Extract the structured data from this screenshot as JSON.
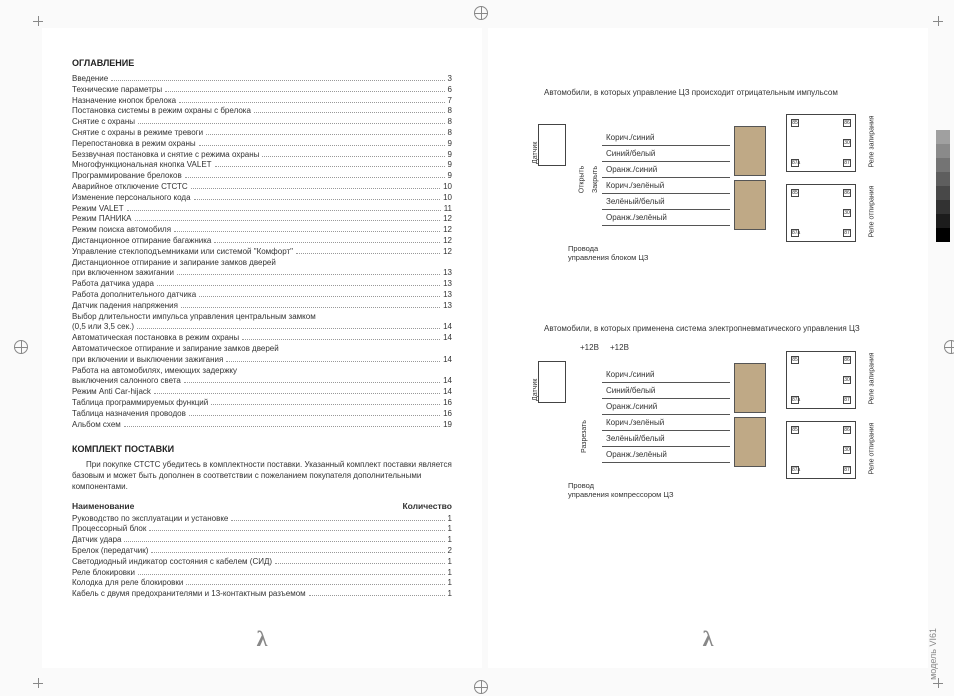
{
  "left_page": {
    "heading_toc": "ОГЛАВЛЕНИЕ",
    "toc": [
      {
        "label": "Введение",
        "page": "3"
      },
      {
        "label": "Технические параметры",
        "page": "6"
      },
      {
        "label": "Назначение кнопок брелока",
        "page": "7"
      },
      {
        "label": "Постановка системы в режим охраны с брелока",
        "page": "8"
      },
      {
        "label": "Снятие с охраны",
        "page": "8"
      },
      {
        "label": "Снятие с охраны в режиме тревоги",
        "page": "8"
      },
      {
        "label": "Перепостановка в режим охраны",
        "page": "9"
      },
      {
        "label": "Беззвучная постановка и снятие с режима охраны",
        "page": "9"
      },
      {
        "label": "Многофункциональная кнопка VALET",
        "page": "9"
      },
      {
        "label": "Программирование брелоков",
        "page": "9"
      },
      {
        "label": "Аварийное отключение СТСТС",
        "page": "10"
      },
      {
        "label": "Изменение персонального кода",
        "page": "10"
      },
      {
        "label": "Режим VALET",
        "page": "11"
      },
      {
        "label": "Режим ПАНИКА",
        "page": "12"
      },
      {
        "label": "Режим поиска автомобиля",
        "page": "12"
      },
      {
        "label": "Дистанционное отпирание багажника",
        "page": "12"
      },
      {
        "label": "Управление стеклоподъемниками или системой \"Комфорт\"",
        "page": "12"
      },
      {
        "label": "Дистанционное отпирание и запирание замков дверей",
        "page": ""
      },
      {
        "label": "при включенном зажигании",
        "page": "13"
      },
      {
        "label": "Работа датчика удара",
        "page": "13"
      },
      {
        "label": "Работа дополнительного датчика",
        "page": "13"
      },
      {
        "label": "Датчик падения напряжения",
        "page": "13"
      },
      {
        "label": "Выбор длительности импульса управления центральным замком",
        "page": ""
      },
      {
        "label": "(0,5 или 3,5 сек.)",
        "page": "14"
      },
      {
        "label": "Автоматическая постановка в режим охраны",
        "page": "14"
      },
      {
        "label": "Автоматическое отпирание и запирание замков дверей",
        "page": ""
      },
      {
        "label": "при включении и выключении зажигания",
        "page": "14"
      },
      {
        "label": "Работа на автомобилях, имеющих задержку",
        "page": ""
      },
      {
        "label": "выключения салонного света",
        "page": "14"
      },
      {
        "label": "Режим Anti Car-hijack",
        "page": "14"
      },
      {
        "label": "Таблица программируемых функций",
        "page": "16"
      },
      {
        "label": "Таблица назначения проводов",
        "page": "16"
      },
      {
        "label": "Альбом схем",
        "page": "19"
      }
    ],
    "heading_kit": "КОМПЛЕКТ ПОСТАВКИ",
    "kit_intro": "При покупке СТСТС убедитесь в комплектности поставки. Указанный комплект поставки является базовым и может быть дополнен в соответствии с пожеланием покупателя дополнительными компонентами.",
    "kit_head_name": "Наименование",
    "kit_head_qty": "Количество",
    "kit": [
      {
        "label": "Руководство по эксплуатации и установке",
        "page": "1"
      },
      {
        "label": "Процессорный блок",
        "page": "1"
      },
      {
        "label": "Датчик удара",
        "page": "1"
      },
      {
        "label": "Брелок (передатчик)",
        "page": "2"
      },
      {
        "label": "Светодиодный индикатор состояния с кабелем (СИД)",
        "page": "1"
      },
      {
        "label": "Реле блокировки",
        "page": "1"
      },
      {
        "label": "Колодка для реле блокировки",
        "page": "1"
      },
      {
        "label": "Кабель с двумя предохранителями и 13-контактным разъемом",
        "page": "1"
      }
    ]
  },
  "right_page": {
    "caption1": "Автомобили, в которых управление ЦЗ происходит отрицательным импульсом",
    "caption2": "Автомобили, в которых применена система электропневматического управления ЦЗ",
    "wire_colors": [
      "Корич./синий",
      "Синий/белый",
      "Оранж./синий",
      "Корич./зелёный",
      "Зелёный/белый",
      "Оранж./зелёный"
    ],
    "sensor": "Датчик",
    "open": "Открыть",
    "close": "Закрыть",
    "cut": "Разрезать",
    "footnote1a": "Провода",
    "footnote1b": "управления блоком ЦЗ",
    "footnote2a": "Провод",
    "footnote2b": "управления компрессором ЦЗ",
    "plus12v": "+12В",
    "relay_lock": "Реле запирания",
    "relay_unlock": "Реле отпирания",
    "relay_pins": [
      "85",
      "86",
      "30",
      "87а",
      "87"
    ],
    "model": "модель VI61",
    "connector_color": "#bfa986"
  },
  "colorbar": [
    "#a0a0a0",
    "#8a8a8a",
    "#747474",
    "#5e5e5e",
    "#484848",
    "#323232",
    "#1c1c1c",
    "#000000"
  ]
}
